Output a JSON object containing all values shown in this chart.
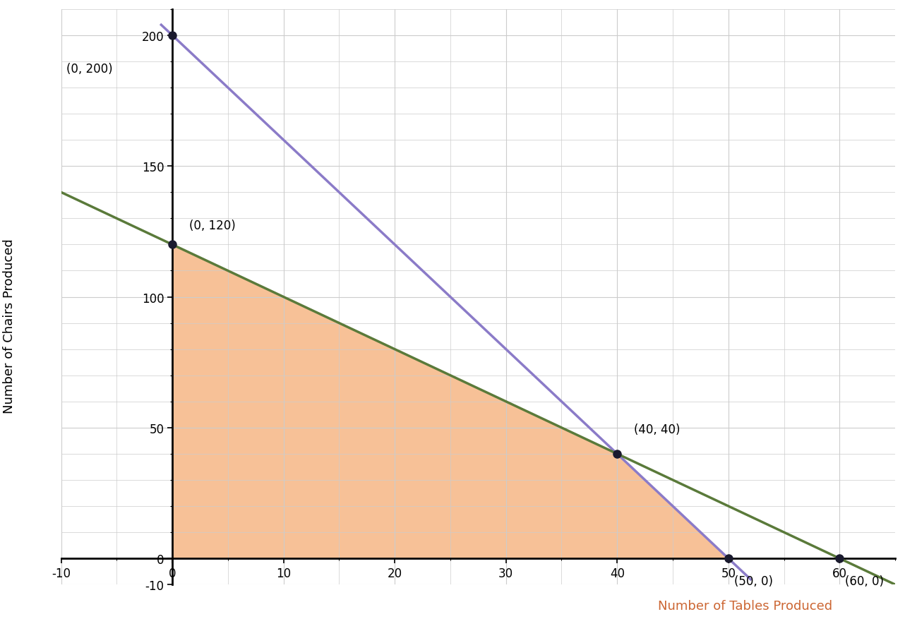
{
  "title": "",
  "xlabel": "Number of Tables Produced",
  "ylabel": "Number of Chairs Produced",
  "xlim": [
    -10,
    65
  ],
  "ylim": [
    -10,
    210
  ],
  "xticks_major": [
    -10,
    0,
    10,
    20,
    30,
    40,
    50,
    60
  ],
  "yticks_major": [
    -10,
    0,
    50,
    100,
    150,
    200
  ],
  "line1_color": "#8B7BC8",
  "line2_color": "#5A7A3A",
  "shaded_vertices": [
    [
      0,
      0
    ],
    [
      0,
      120
    ],
    [
      40,
      40
    ],
    [
      50,
      0
    ]
  ],
  "shade_color": "#F4A060",
  "shade_alpha": 0.65,
  "point_color": "#1a1a2e",
  "points": [
    [
      0,
      200
    ],
    [
      0,
      120
    ],
    [
      40,
      40
    ],
    [
      50,
      0
    ],
    [
      60,
      0
    ]
  ],
  "background_color": "#ffffff",
  "grid_color": "#cccccc",
  "xlabel_color": "#cc6633",
  "figsize": [
    12.82,
    8.78
  ],
  "dpi": 100
}
